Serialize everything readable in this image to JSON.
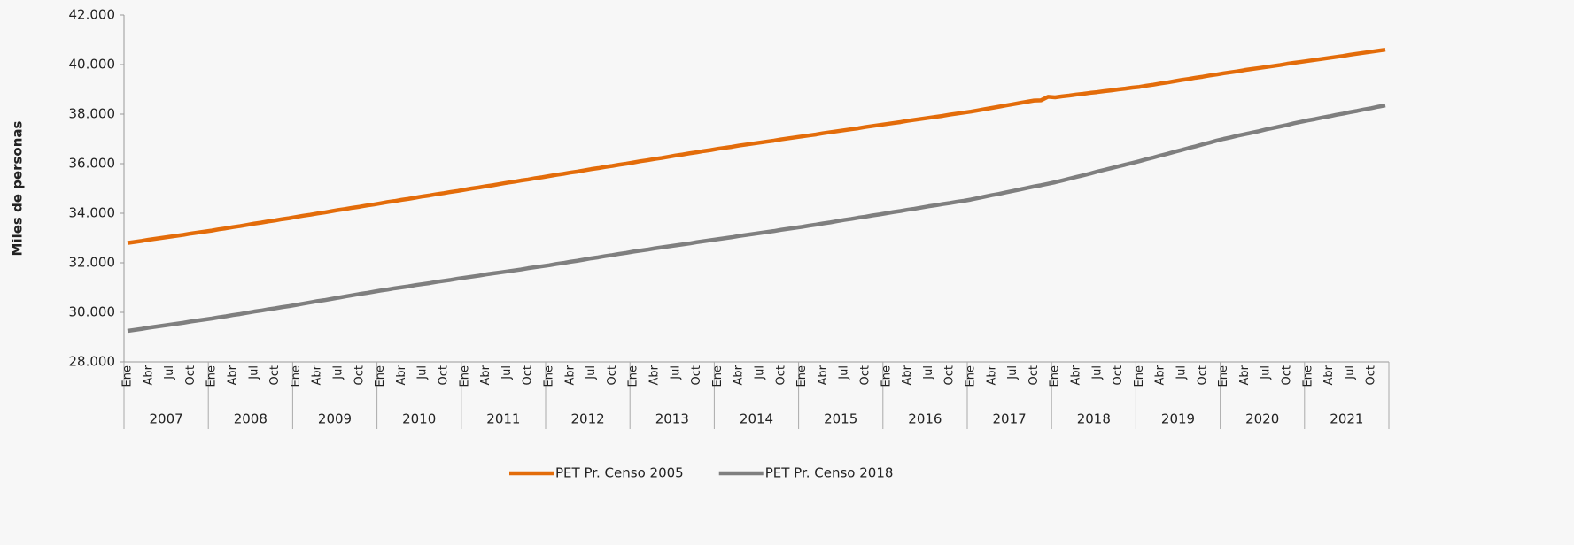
{
  "chart_data": {
    "type": "line",
    "y_label": "Miles de personas",
    "categories": [
      "Ene",
      null,
      null,
      "Abr",
      null,
      null,
      "Jul",
      null,
      null,
      "Oct",
      null,
      null,
      "Ene",
      null,
      null,
      "Abr",
      null,
      null,
      "Jul",
      null,
      null,
      "Oct",
      null,
      null,
      "Ene",
      null,
      null,
      "Abr",
      null,
      null,
      "Jul",
      null,
      null,
      "Oct",
      null,
      null,
      "Ene",
      null,
      null,
      "Abr",
      null,
      null,
      "Jul",
      null,
      null,
      "Oct",
      null,
      null,
      "Ene",
      null,
      null,
      "Abr",
      null,
      null,
      "Jul",
      null,
      null,
      "Oct",
      null,
      null,
      "Ene",
      null,
      null,
      "Abr",
      null,
      null,
      "Jul",
      null,
      null,
      "Oct",
      null,
      null,
      "Ene",
      null,
      null,
      "Abr",
      null,
      null,
      "Jul",
      null,
      null,
      "Oct",
      null,
      null,
      "Ene",
      null,
      null,
      "Abr",
      null,
      null,
      "Jul",
      null,
      null,
      "Oct",
      null,
      null,
      "Ene",
      null,
      null,
      "Abr",
      null,
      null,
      "Jul",
      null,
      null,
      "Oct",
      null,
      null,
      "Ene",
      null,
      null,
      "Abr",
      null,
      null,
      "Jul",
      null,
      null,
      "Oct",
      null,
      null,
      "Ene",
      null,
      null,
      "Abr",
      null,
      null,
      "Jul",
      null,
      null,
      "Oct",
      null,
      null,
      "Ene",
      null,
      null,
      "Abr",
      null,
      null,
      "Jul",
      null,
      null,
      "Oct",
      null,
      null,
      "Ene",
      null,
      null,
      "Abr",
      null,
      null,
      "Jul",
      null,
      null,
      "Oct",
      null,
      null,
      "Ene",
      null,
      null,
      "Abr",
      null,
      null,
      "Jul",
      null,
      null,
      "Oct",
      null,
      null,
      "Ene",
      null,
      null,
      "Abr",
      null,
      null,
      "Jul",
      null,
      null,
      "Oct",
      null,
      null
    ],
    "years": [
      "2007",
      "2008",
      "2009",
      "2010",
      "2011",
      "2012",
      "2013",
      "2014",
      "2015",
      "2016",
      "2017",
      "2018",
      "2019",
      "2020",
      "2021"
    ],
    "series": [
      {
        "name": "PET Pr. Censo 2005",
        "color": "#e36c0a",
        "values": [
          32800,
          32840,
          32880,
          32930,
          32970,
          33010,
          33050,
          33090,
          33130,
          33180,
          33220,
          33260,
          33300,
          33350,
          33390,
          33440,
          33480,
          33530,
          33580,
          33620,
          33670,
          33710,
          33760,
          33800,
          33850,
          33900,
          33940,
          33990,
          34030,
          34080,
          34130,
          34170,
          34220,
          34260,
          34310,
          34350,
          34400,
          34450,
          34490,
          34540,
          34580,
          34630,
          34680,
          34720,
          34770,
          34810,
          34860,
          34900,
          34950,
          35000,
          35040,
          35090,
          35130,
          35180,
          35230,
          35270,
          35320,
          35360,
          35410,
          35450,
          35500,
          35550,
          35590,
          35640,
          35680,
          35730,
          35780,
          35820,
          35870,
          35910,
          35960,
          36000,
          36050,
          36100,
          36140,
          36190,
          36230,
          36280,
          36330,
          36370,
          36420,
          36460,
          36510,
          36550,
          36600,
          36640,
          36680,
          36730,
          36770,
          36810,
          36850,
          36890,
          36930,
          36980,
          37020,
          37060,
          37100,
          37140,
          37180,
          37230,
          37270,
          37310,
          37350,
          37390,
          37430,
          37480,
          37520,
          37560,
          37600,
          37640,
          37680,
          37730,
          37770,
          37810,
          37850,
          37890,
          37930,
          37980,
          38020,
          38060,
          38100,
          38150,
          38200,
          38250,
          38300,
          38350,
          38400,
          38450,
          38500,
          38550,
          38560,
          38700,
          38680,
          38720,
          38750,
          38790,
          38820,
          38860,
          38890,
          38930,
          38960,
          39000,
          39030,
          39070,
          39100,
          39150,
          39190,
          39240,
          39280,
          39330,
          39380,
          39420,
          39470,
          39510,
          39560,
          39600,
          39650,
          39690,
          39730,
          39780,
          39820,
          39860,
          39900,
          39940,
          39980,
          40030,
          40070,
          40110,
          40150,
          40190,
          40230,
          40270,
          40310,
          40350,
          40400,
          40440,
          40480,
          40520,
          40560,
          40600
        ]
      },
      {
        "name": "PET Pr. Censo 2018",
        "color": "#7f7f7f",
        "values": [
          29250,
          29290,
          29330,
          29380,
          29420,
          29460,
          29500,
          29540,
          29580,
          29630,
          29670,
          29710,
          29750,
          29800,
          29840,
          29890,
          29930,
          29980,
          30030,
          30070,
          30120,
          30160,
          30210,
          30250,
          30300,
          30350,
          30400,
          30450,
          30490,
          30540,
          30590,
          30640,
          30690,
          30740,
          30780,
          30830,
          30880,
          30920,
          30970,
          31010,
          31050,
          31100,
          31140,
          31180,
          31230,
          31270,
          31310,
          31360,
          31400,
          31440,
          31480,
          31530,
          31570,
          31610,
          31650,
          31690,
          31730,
          31780,
          31820,
          31860,
          31900,
          31950,
          31990,
          32040,
          32080,
          32130,
          32180,
          32220,
          32270,
          32310,
          32360,
          32400,
          32450,
          32490,
          32530,
          32580,
          32620,
          32660,
          32700,
          32740,
          32780,
          32830,
          32870,
          32910,
          32950,
          32990,
          33030,
          33080,
          33120,
          33160,
          33200,
          33240,
          33280,
          33330,
          33370,
          33410,
          33450,
          33500,
          33540,
          33590,
          33630,
          33680,
          33730,
          33770,
          33820,
          33860,
          33910,
          33950,
          34000,
          34050,
          34090,
          34140,
          34180,
          34230,
          34280,
          34320,
          34370,
          34410,
          34460,
          34500,
          34550,
          34610,
          34670,
          34730,
          34780,
          34840,
          34900,
          34960,
          35020,
          35080,
          35130,
          35190,
          35250,
          35320,
          35390,
          35460,
          35530,
          35600,
          35680,
          35750,
          35820,
          35890,
          35960,
          36030,
          36100,
          36180,
          36250,
          36330,
          36400,
          36480,
          36550,
          36630,
          36700,
          36780,
          36850,
          36930,
          37000,
          37060,
          37130,
          37190,
          37250,
          37310,
          37380,
          37440,
          37500,
          37560,
          37630,
          37690,
          37750,
          37800,
          37860,
          37910,
          37970,
          38020,
          38080,
          38130,
          38190,
          38240,
          38300,
          38350
        ]
      }
    ],
    "ylim": [
      28000,
      42000
    ],
    "yticks": [
      {
        "value": 28000,
        "label": "28.000"
      },
      {
        "value": 30000,
        "label": "30.000"
      },
      {
        "value": 32000,
        "label": "32.000"
      },
      {
        "value": 34000,
        "label": "34.000"
      },
      {
        "value": 36000,
        "label": "36.000"
      },
      {
        "value": 38000,
        "label": "38.000"
      },
      {
        "value": 40000,
        "label": "40.000"
      },
      {
        "value": 42000,
        "label": "42.000"
      }
    ],
    "grid": false,
    "legend": "bottom"
  }
}
